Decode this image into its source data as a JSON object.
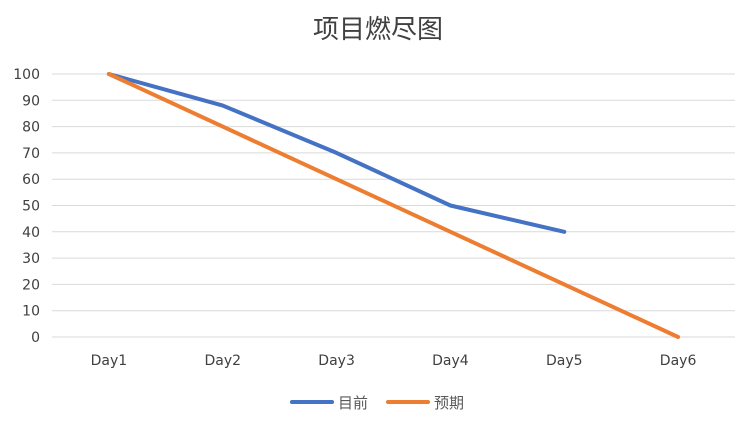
{
  "chart_data": {
    "type": "line",
    "title": "项目燃尽图",
    "categories": [
      "Day1",
      "Day2",
      "Day3",
      "Day4",
      "Day5",
      "Day6"
    ],
    "series": [
      {
        "name": "目前",
        "values": [
          100,
          88,
          70,
          50,
          40,
          null
        ],
        "color": "#4472c4"
      },
      {
        "name": "预期",
        "values": [
          100,
          80,
          60,
          40,
          20,
          0
        ],
        "color": "#ed7d31"
      }
    ],
    "ylim": [
      0,
      100
    ],
    "yticks": [
      0,
      10,
      20,
      30,
      40,
      50,
      60,
      70,
      80,
      90,
      100
    ],
    "grid": true,
    "legend": "bottom"
  }
}
